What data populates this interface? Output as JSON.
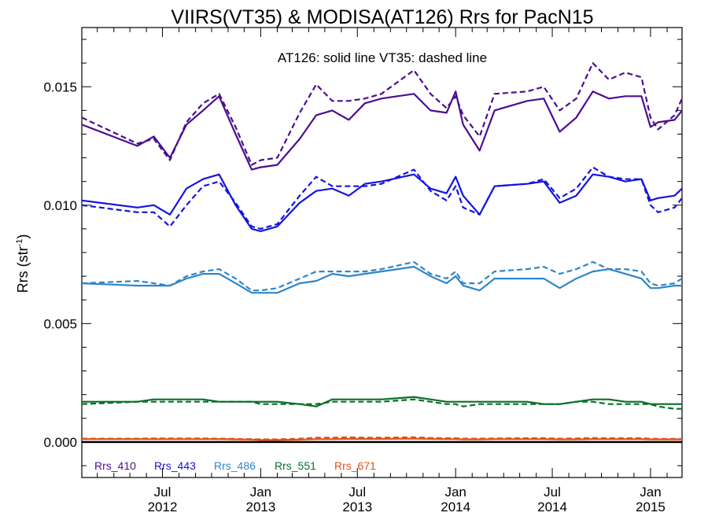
{
  "chart_data": {
    "type": "line",
    "title": "VIIRS(VT35) & MODISA(AT126)  Rrs for PacN15",
    "ylabel_main": "Rrs (str",
    "ylabel_sup": "-1",
    "ylabel_end": ")",
    "annotation": "AT126: solid line   VT35: dashed line",
    "ylim": [
      -0.0015,
      0.0175
    ],
    "xlim": [
      "2012-02-01",
      "2015-03-01"
    ],
    "yticks": [
      {
        "value": 0.0,
        "label": "0.000"
      },
      {
        "value": 0.005,
        "label": "0.005"
      },
      {
        "value": 0.01,
        "label": "0.010"
      },
      {
        "value": 0.015,
        "label": "0.015"
      }
    ],
    "xticks": [
      {
        "date": "2012-07-01",
        "line1": "Jul",
        "line2": "2012"
      },
      {
        "date": "2013-01-01",
        "line1": "Jan",
        "line2": "2013"
      },
      {
        "date": "2013-07-01",
        "line1": "Jul",
        "line2": "2013"
      },
      {
        "date": "2014-01-01",
        "line1": "Jan",
        "line2": "2014"
      },
      {
        "date": "2014-07-01",
        "line1": "Jul",
        "line2": "2014"
      },
      {
        "date": "2015-01-01",
        "line1": "Jan",
        "line2": "2015"
      }
    ],
    "x": [
      "2012-02-01",
      "2012-05-15",
      "2012-06-15",
      "2012-07-15",
      "2012-08-15",
      "2012-09-15",
      "2012-10-15",
      "2012-11-15",
      "2012-12-15",
      "2013-01-01",
      "2013-02-01",
      "2013-03-15",
      "2013-04-15",
      "2013-05-15",
      "2013-06-15",
      "2013-07-15",
      "2013-08-15",
      "2013-10-15",
      "2013-11-15",
      "2013-12-15",
      "2014-01-01",
      "2014-01-15",
      "2014-02-15",
      "2014-03-15",
      "2014-05-15",
      "2014-06-15",
      "2014-07-15",
      "2014-08-15",
      "2014-09-15",
      "2014-10-15",
      "2014-11-15",
      "2014-12-15",
      "2015-01-01",
      "2015-01-15",
      "2015-02-15",
      "2015-03-01"
    ],
    "series": [
      {
        "name": "Rrs_410",
        "color": "#4b0f8f",
        "solid": [
          0.0134,
          0.0125,
          0.0129,
          0.012,
          0.0134,
          0.014,
          0.0146,
          0.013,
          0.0115,
          0.0116,
          0.0117,
          0.0128,
          0.0138,
          0.014,
          0.0136,
          0.0143,
          0.0145,
          0.0147,
          0.014,
          0.0139,
          0.0148,
          0.0134,
          0.0123,
          0.014,
          0.0144,
          0.0145,
          0.0131,
          0.0137,
          0.0148,
          0.0145,
          0.0146,
          0.0146,
          0.0133,
          0.0135,
          0.0136,
          0.014
        ],
        "dashed": [
          0.0137,
          0.0126,
          0.0128,
          0.0119,
          0.0135,
          0.0143,
          0.0147,
          0.0133,
          0.0117,
          0.0119,
          0.012,
          0.0139,
          0.0151,
          0.0144,
          0.0144,
          0.0145,
          0.0147,
          0.0157,
          0.0147,
          0.0141,
          0.0146,
          0.0138,
          0.0129,
          0.0147,
          0.0148,
          0.015,
          0.014,
          0.0145,
          0.016,
          0.0153,
          0.0156,
          0.0154,
          0.0137,
          0.0132,
          0.0138,
          0.0145
        ]
      },
      {
        "name": "Rrs_443",
        "color": "#1414e0",
        "solid": [
          0.0102,
          0.0099,
          0.01,
          0.0096,
          0.0107,
          0.0111,
          0.0113,
          0.01,
          0.009,
          0.0089,
          0.0091,
          0.0101,
          0.0106,
          0.0107,
          0.0104,
          0.0109,
          0.011,
          0.0113,
          0.0107,
          0.0105,
          0.0112,
          0.0104,
          0.0096,
          0.0108,
          0.0109,
          0.011,
          0.0101,
          0.0104,
          0.0113,
          0.0112,
          0.011,
          0.0111,
          0.0102,
          0.0103,
          0.0104,
          0.0107
        ],
        "dashed": [
          0.01,
          0.0097,
          0.0097,
          0.0091,
          0.01,
          0.0108,
          0.011,
          0.0101,
          0.0091,
          0.009,
          0.0092,
          0.0104,
          0.0112,
          0.0108,
          0.0108,
          0.0108,
          0.0109,
          0.0115,
          0.0106,
          0.0102,
          0.0108,
          0.0099,
          0.0096,
          0.0108,
          0.0109,
          0.0111,
          0.0103,
          0.0107,
          0.0116,
          0.0112,
          0.0111,
          0.0111,
          0.01,
          0.0097,
          0.0099,
          0.0103
        ]
      },
      {
        "name": "Rrs_486",
        "color": "#2e86c8",
        "solid": [
          0.0067,
          0.0066,
          0.0066,
          0.0066,
          0.0069,
          0.0071,
          0.0071,
          0.0067,
          0.0063,
          0.0063,
          0.0063,
          0.0067,
          0.0068,
          0.0071,
          0.007,
          0.0071,
          0.0072,
          0.0074,
          0.007,
          0.0067,
          0.007,
          0.0066,
          0.0064,
          0.0069,
          0.0069,
          0.0069,
          0.0065,
          0.0069,
          0.0072,
          0.0073,
          0.0071,
          0.0069,
          0.0065,
          0.0065,
          0.0066,
          0.0066
        ],
        "dashed": [
          0.0067,
          0.0068,
          0.0067,
          0.0066,
          0.007,
          0.0072,
          0.0073,
          0.0069,
          0.0064,
          0.0064,
          0.0065,
          0.0069,
          0.0072,
          0.0072,
          0.0072,
          0.0072,
          0.0073,
          0.0076,
          0.0071,
          0.0069,
          0.0072,
          0.0067,
          0.0067,
          0.0072,
          0.0073,
          0.0074,
          0.0071,
          0.0073,
          0.0076,
          0.0073,
          0.0073,
          0.0072,
          0.0067,
          0.0066,
          0.0067,
          0.0069
        ]
      },
      {
        "name": "Rrs_551",
        "color": "#0b6e2a",
        "solid": [
          0.0017,
          0.0017,
          0.0018,
          0.0018,
          0.0018,
          0.0018,
          0.0017,
          0.0017,
          0.0017,
          0.0017,
          0.0017,
          0.0016,
          0.0015,
          0.0018,
          0.0018,
          0.0018,
          0.0018,
          0.0019,
          0.0018,
          0.0017,
          0.0017,
          0.0017,
          0.0017,
          0.0017,
          0.0017,
          0.0016,
          0.0016,
          0.0017,
          0.0018,
          0.0018,
          0.0017,
          0.0017,
          0.0016,
          0.0016,
          0.0016,
          0.0016
        ],
        "dashed": [
          0.0016,
          0.0017,
          0.0017,
          0.0017,
          0.0017,
          0.0017,
          0.0017,
          0.0017,
          0.0017,
          0.0016,
          0.0016,
          0.0016,
          0.0016,
          0.0017,
          0.0017,
          0.0017,
          0.0017,
          0.0018,
          0.0017,
          0.0016,
          0.0016,
          0.0015,
          0.0016,
          0.0016,
          0.0016,
          0.0016,
          0.0016,
          0.0017,
          0.0017,
          0.0016,
          0.0016,
          0.0016,
          0.0016,
          0.0015,
          0.0014,
          0.0014
        ]
      },
      {
        "name": "Rrs_671",
        "color": "#e0501a",
        "solid": [
          0.00012,
          0.00012,
          0.00012,
          0.00012,
          0.00012,
          0.00012,
          0.00012,
          0.00011,
          0.0001,
          8e-05,
          8e-05,
          0.0001,
          0.00012,
          0.00012,
          0.00013,
          0.00013,
          0.00013,
          0.00014,
          0.00013,
          0.00012,
          0.00012,
          0.00011,
          0.00011,
          0.00012,
          0.00012,
          0.00012,
          0.00011,
          0.00011,
          0.00012,
          0.00012,
          0.00012,
          0.00012,
          0.00011,
          0.00011,
          0.00011,
          0.00011
        ],
        "dashed": [
          0.00014,
          0.00014,
          0.00015,
          0.00015,
          0.00015,
          0.00015,
          0.00014,
          0.00013,
          0.00012,
          0.00011,
          0.00011,
          0.00014,
          0.00018,
          0.00018,
          0.0002,
          0.00018,
          0.00018,
          0.0002,
          0.00017,
          0.00016,
          0.00016,
          0.00014,
          0.00014,
          0.00015,
          0.00016,
          0.00016,
          0.00014,
          0.00015,
          0.00017,
          0.00016,
          0.00016,
          0.00016,
          0.00014,
          0.00013,
          0.00013,
          0.00013
        ]
      }
    ],
    "zero_line": {
      "value": 0.0,
      "color": "#000000"
    },
    "legend": [
      "Rrs_410",
      "Rrs_443",
      "Rrs_486",
      "Rrs_551",
      "Rrs_671"
    ],
    "legend_position": "bottom-left"
  }
}
